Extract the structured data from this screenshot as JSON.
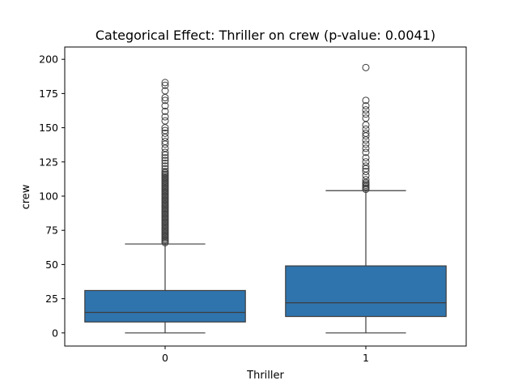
{
  "chart_data": {
    "type": "box",
    "title": "Categorical Effect: Thriller on crew (p-value: 0.0041)",
    "xlabel": "Thriller",
    "ylabel": "crew",
    "categories": [
      "0",
      "1"
    ],
    "ylim": [
      -9.6,
      209
    ],
    "yticks": [
      0,
      25,
      50,
      75,
      100,
      125,
      150,
      175,
      200
    ],
    "grid": false,
    "box_color": "#2f74ad",
    "line_color": "#3d3d3d",
    "boxes": [
      {
        "category": "0",
        "whisker_low": 0,
        "q1": 8,
        "median": 15,
        "q3": 31,
        "whisker_high": 65,
        "outliers": [
          66,
          67,
          68,
          69,
          70,
          71,
          72,
          73,
          74,
          75,
          76,
          77,
          78,
          79,
          80,
          81,
          82,
          83,
          84,
          85,
          86,
          87,
          88,
          89,
          90,
          91,
          92,
          93,
          94,
          95,
          96,
          97,
          98,
          99,
          100,
          101,
          102,
          103,
          104,
          105,
          106,
          107,
          108,
          109,
          110,
          111,
          112,
          113,
          114,
          115,
          116,
          117,
          118,
          120,
          122,
          124,
          126,
          128,
          130,
          132,
          135,
          138,
          140,
          143,
          146,
          148,
          150,
          155,
          158,
          162,
          166,
          170,
          172,
          177,
          181,
          183
        ]
      },
      {
        "category": "1",
        "whisker_low": 0,
        "q1": 12,
        "median": 22,
        "q3": 49,
        "whisker_high": 104,
        "outliers": [
          105,
          106,
          107,
          108,
          109,
          110,
          112,
          115,
          118,
          120,
          122,
          125,
          128,
          132,
          135,
          138,
          141,
          144,
          146,
          149,
          152,
          157,
          160,
          163,
          166,
          170,
          194
        ]
      }
    ]
  }
}
